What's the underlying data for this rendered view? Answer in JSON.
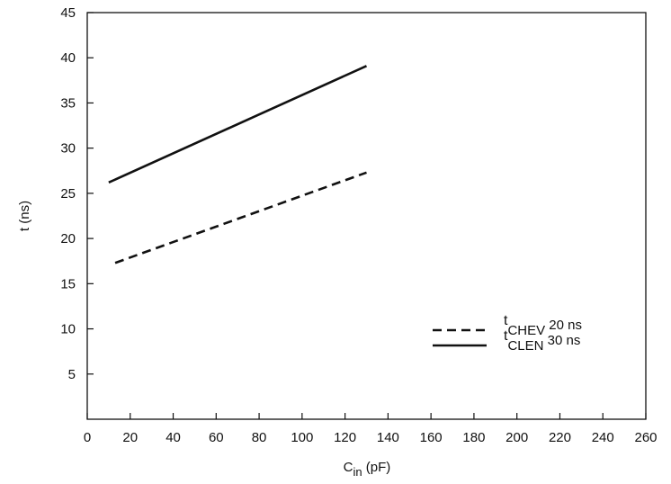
{
  "chart_data": {
    "type": "line",
    "title": "",
    "xlabel": {
      "main": "C",
      "sub": "in",
      "rest": " (pF)"
    },
    "ylabel": "t (ns)",
    "xlim": [
      0,
      260
    ],
    "ylim": [
      0,
      45
    ],
    "xticks": [
      0,
      20,
      40,
      60,
      80,
      100,
      120,
      140,
      160,
      180,
      200,
      220,
      240,
      260
    ],
    "yticks": [
      5,
      10,
      15,
      20,
      25,
      30,
      35,
      40,
      45
    ],
    "grid": false,
    "legend_position": "bottom-right",
    "series": [
      {
        "name": "tCLEN 30 ns",
        "legend_sub": "CLEN",
        "legend_suffix": " 30 ns",
        "style": "solid",
        "x": [
          10,
          130
        ],
        "y": [
          26.2,
          39.1
        ]
      },
      {
        "name": "tCHEV 20 ns",
        "legend_sub": "CHEV",
        "legend_suffix": " 20 ns",
        "style": "dashed",
        "x": [
          13,
          130
        ],
        "y": [
          17.3,
          27.3
        ]
      }
    ],
    "legend_order": [
      1,
      0
    ]
  }
}
